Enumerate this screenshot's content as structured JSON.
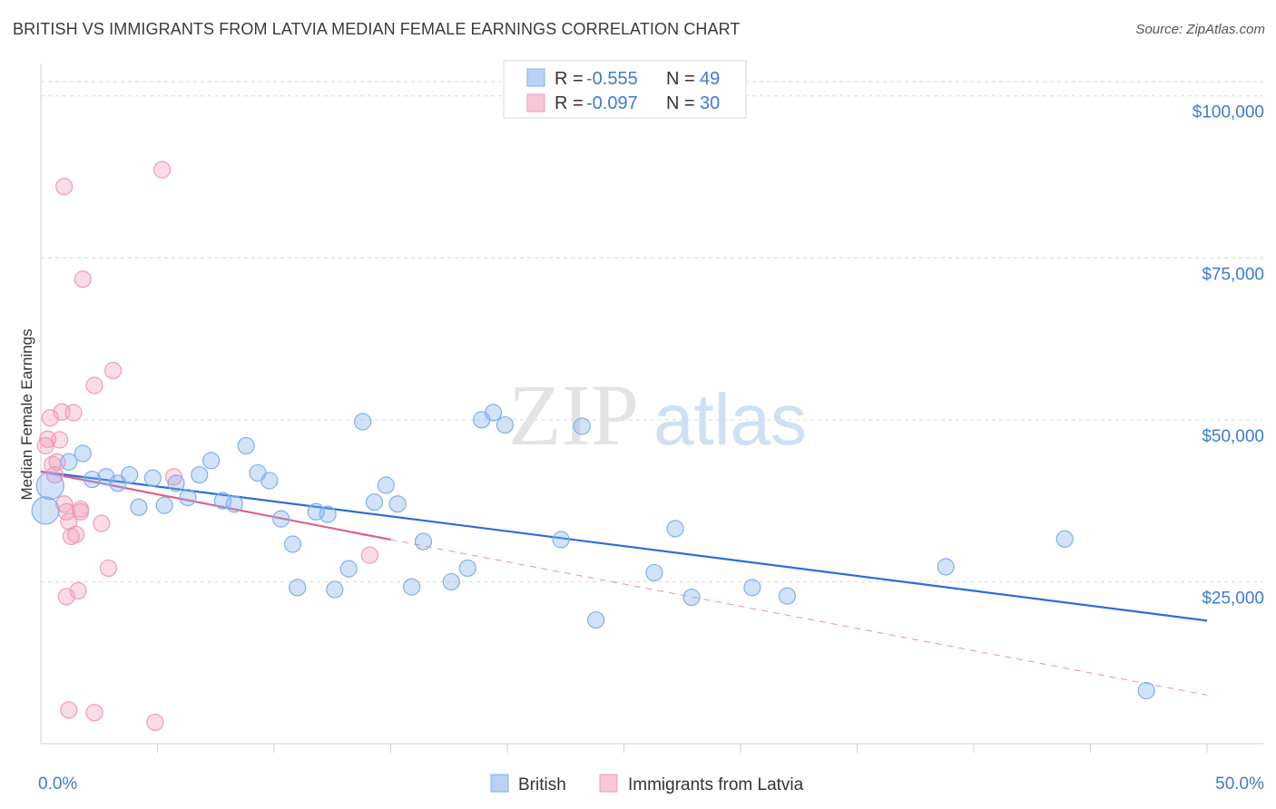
{
  "title": "BRITISH VS IMMIGRANTS FROM LATVIA MEDIAN FEMALE EARNINGS CORRELATION CHART",
  "source": "Source: ZipAtlas.com",
  "watermark": {
    "zip": "ZIP",
    "atlas": "atlas"
  },
  "colors": {
    "british": "#7fb0ea",
    "british_line": "#2a6fd1",
    "latvia": "#f29ab8",
    "latvia_line": "#e0608c",
    "tick": "#3d7bd1",
    "grid": "#d9d9d9"
  },
  "legend": {
    "rows": [
      {
        "r_label": "R =",
        "r_value": "-0.555",
        "n_label": "N =",
        "n_value": "49"
      },
      {
        "r_label": "R =",
        "r_value": "-0.097",
        "n_label": "N =",
        "n_value": "30"
      }
    ]
  },
  "bottom_legend": {
    "british": "British",
    "latvia": "Immigrants from Latvia"
  },
  "chart_data": {
    "type": "scatter",
    "title": "BRITISH VS IMMIGRANTS FROM LATVIA MEDIAN FEMALE EARNINGS CORRELATION CHART",
    "xlabel": "",
    "ylabel": "Median Female Earnings",
    "xlim": [
      0,
      50
    ],
    "ylim": [
      0,
      105000
    ],
    "x_tick_labels": [
      "0.0%",
      "50.0%"
    ],
    "y_ticks": [
      25000,
      50000,
      75000,
      100000
    ],
    "y_tick_labels": [
      "$25,000",
      "$50,000",
      "$75,000",
      "$100,000"
    ],
    "grid": true,
    "legend_position": "top-center",
    "series": [
      {
        "name": "British",
        "trend": {
          "x0": 0,
          "y0": 42000,
          "x1": 50,
          "y1": 19000
        },
        "points": [
          [
            0.2,
            36000
          ],
          [
            0.4,
            39800
          ],
          [
            1.2,
            43500
          ],
          [
            1.8,
            44800
          ],
          [
            2.2,
            40800
          ],
          [
            2.8,
            41200
          ],
          [
            3.3,
            40200
          ],
          [
            3.8,
            41500
          ],
          [
            4.2,
            36500
          ],
          [
            4.8,
            41000
          ],
          [
            5.3,
            36800
          ],
          [
            5.8,
            40200
          ],
          [
            6.3,
            38000
          ],
          [
            6.8,
            41500
          ],
          [
            7.3,
            43700
          ],
          [
            7.8,
            37500
          ],
          [
            8.3,
            37000
          ],
          [
            8.8,
            46000
          ],
          [
            9.3,
            41800
          ],
          [
            9.8,
            40600
          ],
          [
            10.3,
            34700
          ],
          [
            10.8,
            30800
          ],
          [
            11.0,
            24100
          ],
          [
            11.8,
            35800
          ],
          [
            12.3,
            35400
          ],
          [
            12.6,
            23800
          ],
          [
            13.2,
            27000
          ],
          [
            13.8,
            49700
          ],
          [
            14.3,
            37300
          ],
          [
            14.8,
            39900
          ],
          [
            15.3,
            37000
          ],
          [
            15.9,
            24200
          ],
          [
            16.4,
            31200
          ],
          [
            17.6,
            25000
          ],
          [
            18.3,
            27100
          ],
          [
            18.9,
            50000
          ],
          [
            19.4,
            51100
          ],
          [
            19.9,
            49200
          ],
          [
            22.3,
            31500
          ],
          [
            23.2,
            49000
          ],
          [
            23.8,
            19100
          ],
          [
            26.3,
            26400
          ],
          [
            27.2,
            33200
          ],
          [
            27.9,
            22600
          ],
          [
            30.5,
            24100
          ],
          [
            32.0,
            22800
          ],
          [
            38.8,
            27300
          ],
          [
            43.9,
            31600
          ],
          [
            47.4,
            8200
          ]
        ]
      },
      {
        "name": "Immigrants from Latvia",
        "trend": {
          "x0": 0,
          "y0": 42000,
          "x1": 15,
          "y1": 31500,
          "dash_to_x": 50,
          "dash_to_y": 7500
        },
        "points": [
          [
            0.2,
            46000
          ],
          [
            0.3,
            47000
          ],
          [
            0.4,
            50300
          ],
          [
            0.6,
            41500
          ],
          [
            0.7,
            43500
          ],
          [
            0.9,
            51200
          ],
          [
            1.0,
            37000
          ],
          [
            1.1,
            35800
          ],
          [
            1.2,
            34300
          ],
          [
            1.3,
            32000
          ],
          [
            1.1,
            22700
          ],
          [
            1.6,
            23600
          ],
          [
            1.7,
            35800
          ],
          [
            1.5,
            32300
          ],
          [
            1.4,
            51100
          ],
          [
            1.8,
            71700
          ],
          [
            1.0,
            86000
          ],
          [
            2.3,
            55300
          ],
          [
            2.6,
            34000
          ],
          [
            2.9,
            27100
          ],
          [
            3.1,
            57600
          ],
          [
            1.2,
            5200
          ],
          [
            2.3,
            4800
          ],
          [
            4.9,
            3300
          ],
          [
            5.2,
            88600
          ],
          [
            5.7,
            41200
          ],
          [
            14.1,
            29100
          ],
          [
            0.5,
            43100
          ],
          [
            0.8,
            46900
          ],
          [
            1.7,
            36200
          ]
        ]
      }
    ]
  }
}
